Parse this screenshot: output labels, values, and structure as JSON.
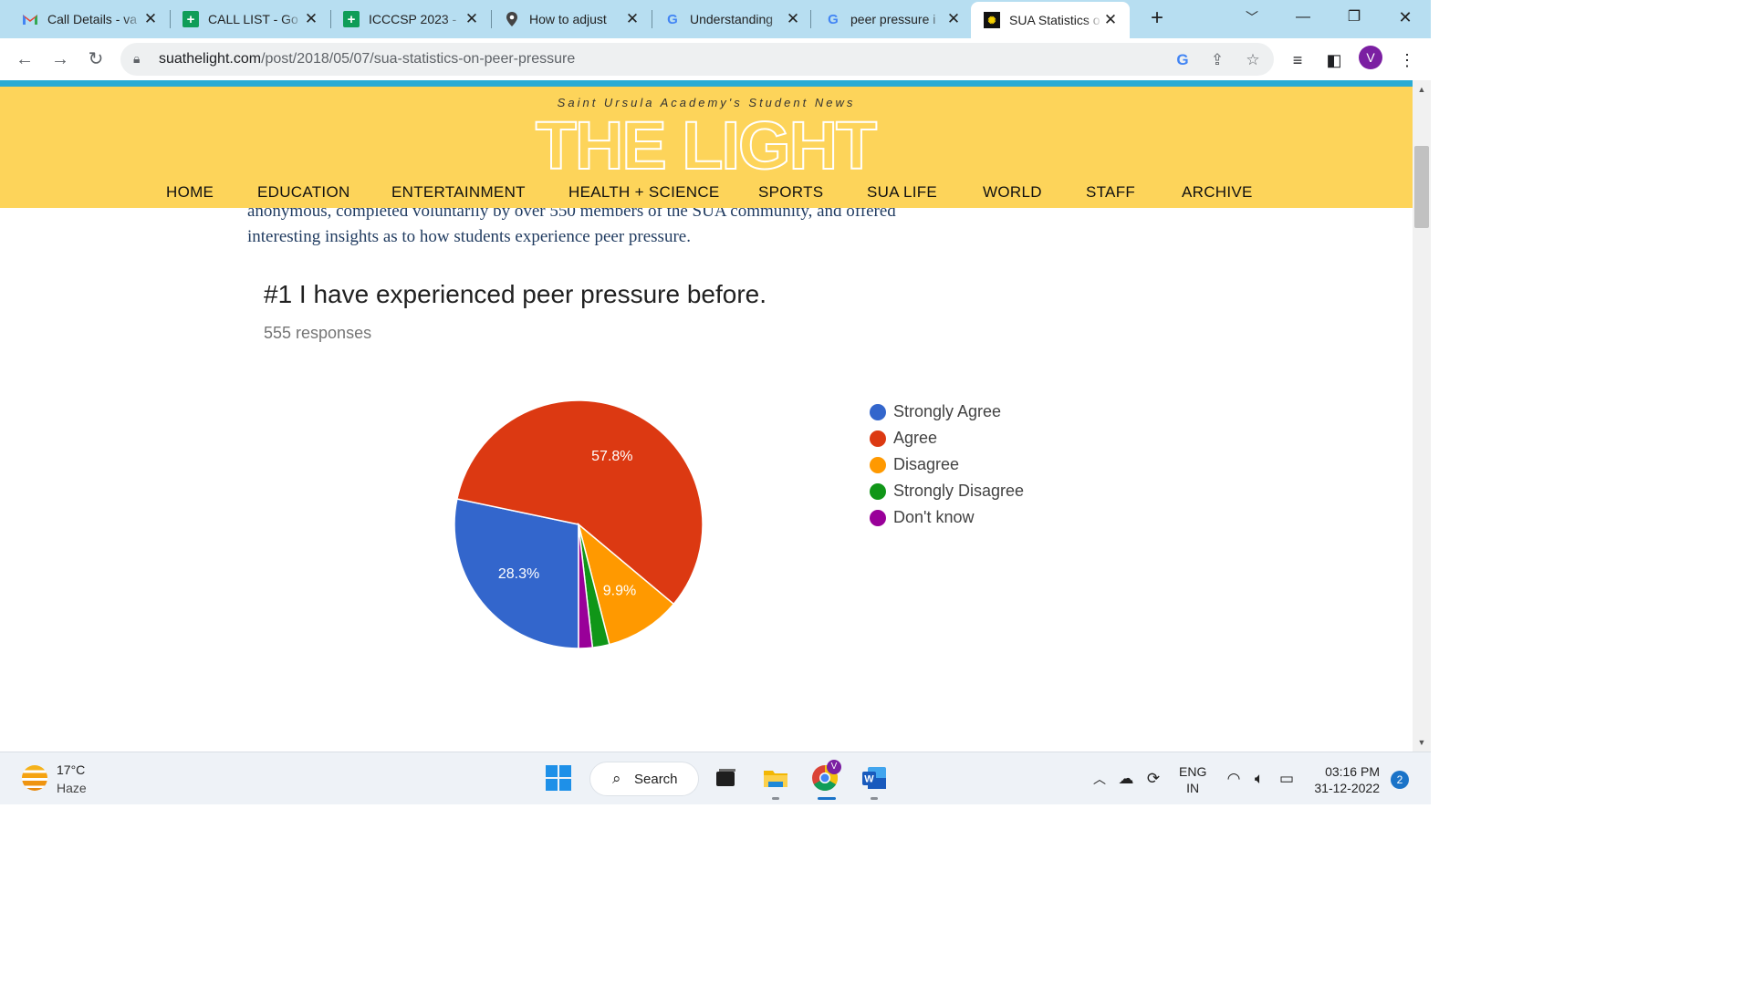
{
  "tabs": [
    {
      "title": "Call Details - va",
      "icon": "gmail-icon"
    },
    {
      "title": "CALL LIST - Go",
      "icon": "sheets-icon"
    },
    {
      "title": "ICCCSP 2023 - ",
      "icon": "sheets-icon"
    },
    {
      "title": "How to adjust ",
      "icon": "maps-pin-icon"
    },
    {
      "title": "Understanding",
      "icon": "google-icon"
    },
    {
      "title": "peer pressure i",
      "icon": "google-icon"
    },
    {
      "title": "SUA Statistics o",
      "icon": "sua-icon"
    }
  ],
  "address": {
    "domain": "suathelight.com",
    "path": "/post/2018/05/07/sua-statistics-on-peer-pressure",
    "profile_initial": "V"
  },
  "site": {
    "tagline": "Saint Ursula Academy's Student News",
    "logo": "THE LIGHT",
    "nav": [
      "HOME",
      "EDUCATION",
      "ENTERTAINMENT",
      "HEALTH + SCIENCE",
      "SPORTS",
      "SUA LIFE",
      "WORLD",
      "STAFF",
      "ARCHIVE"
    ]
  },
  "article": {
    "line_partial": "anonymous, completed voluntarily by over 550 members of the SUA community, and offered",
    "line2": "interesting insights as to how students experience peer pressure."
  },
  "chart": {
    "title": "#1 I have experienced peer pressure before.",
    "subtitle": "555 responses"
  },
  "chart_data": {
    "type": "pie",
    "title": "#1 I have experienced peer pressure before.",
    "subtitle": "555 responses",
    "start_angle_deg": 180,
    "labels": [
      "Strongly Agree",
      "Agree",
      "Disagree",
      "Strongly Disagree",
      "Don't know"
    ],
    "values": [
      28.3,
      57.8,
      9.9,
      2.2,
      1.8
    ],
    "value_labels": [
      "28.3%",
      "57.8%",
      "9.9%",
      "",
      ""
    ],
    "colors": [
      "#3366cc",
      "#dc3912",
      "#ff9900",
      "#109618",
      "#990099"
    ],
    "legend_position": "right"
  },
  "taskbar": {
    "temp": "17°C",
    "condition": "Haze",
    "search_label": "Search",
    "lang_top": "ENG",
    "lang_bottom": "IN",
    "time": "03:16 PM",
    "date": "31-12-2022",
    "notifications": "2",
    "chrome_badge": "V"
  }
}
